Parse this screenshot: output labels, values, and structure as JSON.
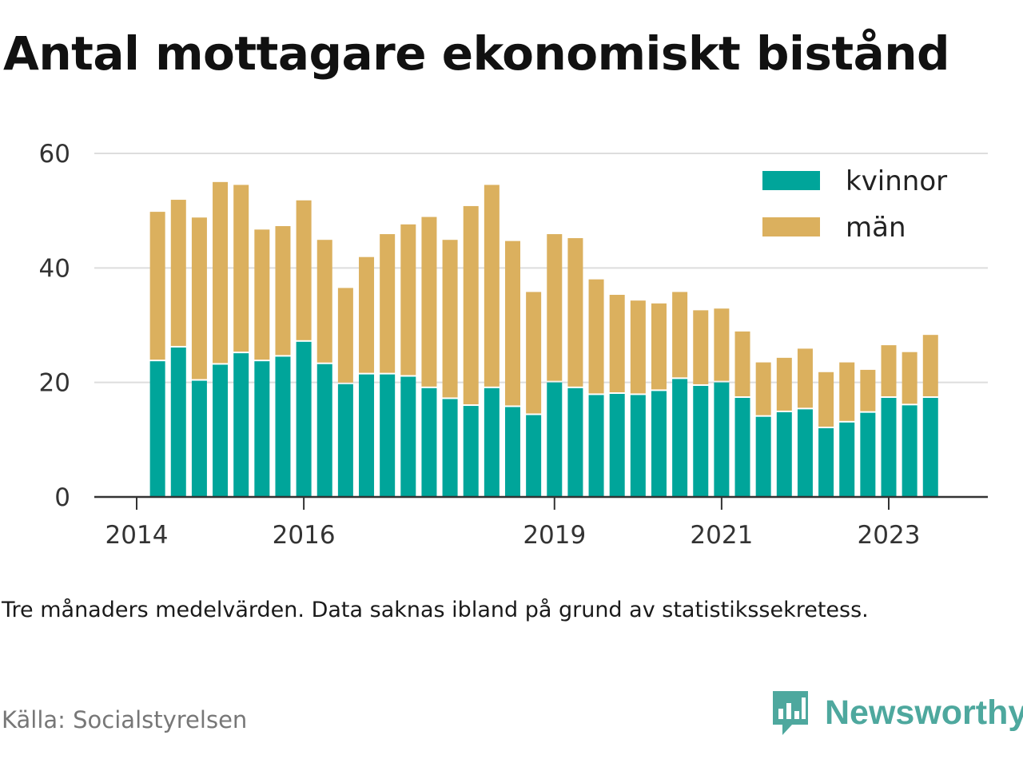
{
  "title": "Antal mottagare ekonomiskt bistånd",
  "note": "Tre månaders medelvärden. Data saknas ibland på grund av statistikssekretess.",
  "source": "Källa: Socialstyrelsen",
  "brand": {
    "name": "Newsworthy",
    "icon": "newsworthy-logo-icon",
    "color": "#4ea89e"
  },
  "colors": {
    "kvinnor": "#00a59a",
    "man": "#dbb05e",
    "grid": "#dddddd",
    "axis": "#333333"
  },
  "chart_data": {
    "type": "bar",
    "stacked": true,
    "x_tick_labels": [
      "2014",
      "2016",
      "2019",
      "2021",
      "2023"
    ],
    "x_tick_dates": [
      2014.0,
      2016.0,
      2019.0,
      2021.0,
      2023.0
    ],
    "x_range": [
      2013.5,
      2024.1
    ],
    "y_ticks": [
      0,
      20,
      40,
      60
    ],
    "ylim": [
      0,
      60
    ],
    "grid": true,
    "legend_position": "top-right",
    "x": [
      2014.25,
      2014.5,
      2014.75,
      2015.0,
      2015.25,
      2015.5,
      2015.75,
      2016.0,
      2016.25,
      2016.5,
      2016.75,
      2017.0,
      2017.25,
      2017.5,
      2017.75,
      2018.0,
      2018.25,
      2018.5,
      2018.75,
      2019.0,
      2019.25,
      2019.5,
      2019.75,
      2020.0,
      2020.25,
      2020.5,
      2020.75,
      2021.0,
      2021.25,
      2021.5,
      2021.75,
      2022.0,
      2022.25,
      2022.5,
      2022.75,
      2023.0,
      2023.25,
      2023.5
    ],
    "series": [
      {
        "name": "kvinnor",
        "values": [
          23.7,
          26.1,
          20.3,
          23.1,
          25.1,
          23.7,
          24.5,
          27.1,
          23.2,
          19.7,
          21.4,
          21.4,
          21.0,
          19.0,
          17.1,
          15.9,
          19.0,
          15.7,
          14.3,
          20.0,
          19.0,
          17.8,
          18.0,
          17.8,
          18.5,
          20.6,
          19.4,
          20.0,
          17.3,
          14.0,
          14.8,
          15.3,
          12.0,
          13.0,
          14.7,
          17.3,
          16.0,
          17.3
        ]
      },
      {
        "name": "män",
        "values": [
          26.1,
          25.8,
          28.5,
          31.9,
          29.4,
          23.0,
          22.8,
          24.7,
          21.7,
          16.8,
          20.5,
          24.5,
          26.6,
          29.9,
          27.8,
          34.9,
          35.5,
          29.0,
          21.5,
          25.9,
          26.2,
          20.2,
          17.3,
          16.5,
          15.3,
          15.2,
          13.2,
          12.9,
          11.6,
          9.5,
          9.5,
          10.6,
          9.8,
          10.5,
          7.5,
          9.2,
          9.3,
          11.0
        ]
      }
    ]
  }
}
